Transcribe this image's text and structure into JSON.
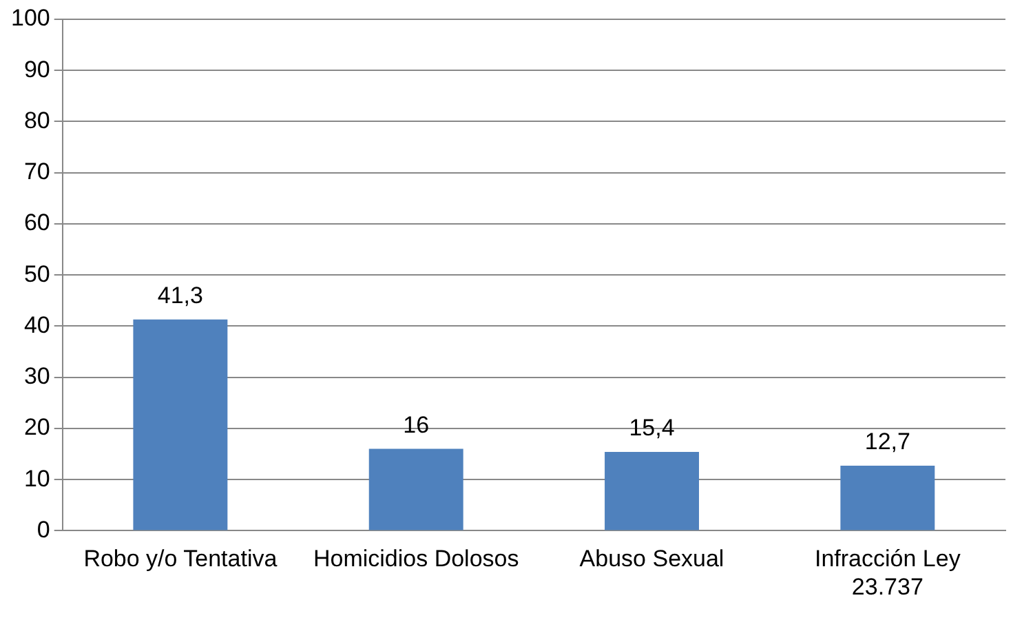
{
  "chart_data": {
    "type": "bar",
    "categories": [
      "Robo y/o Tentativa",
      "Homicidios Dolosos",
      "Abuso Sexual",
      "Infracción Ley 23.737"
    ],
    "values": [
      41.3,
      16,
      15.4,
      12.7
    ],
    "value_labels": [
      "41,3",
      "16",
      "15,4",
      "12,7"
    ],
    "color": "#4f81bd",
    "ylim": [
      0,
      100
    ],
    "yticks": [
      0,
      10,
      20,
      30,
      40,
      50,
      60,
      70,
      80,
      90,
      100
    ],
    "grid": "y",
    "legend": false
  }
}
